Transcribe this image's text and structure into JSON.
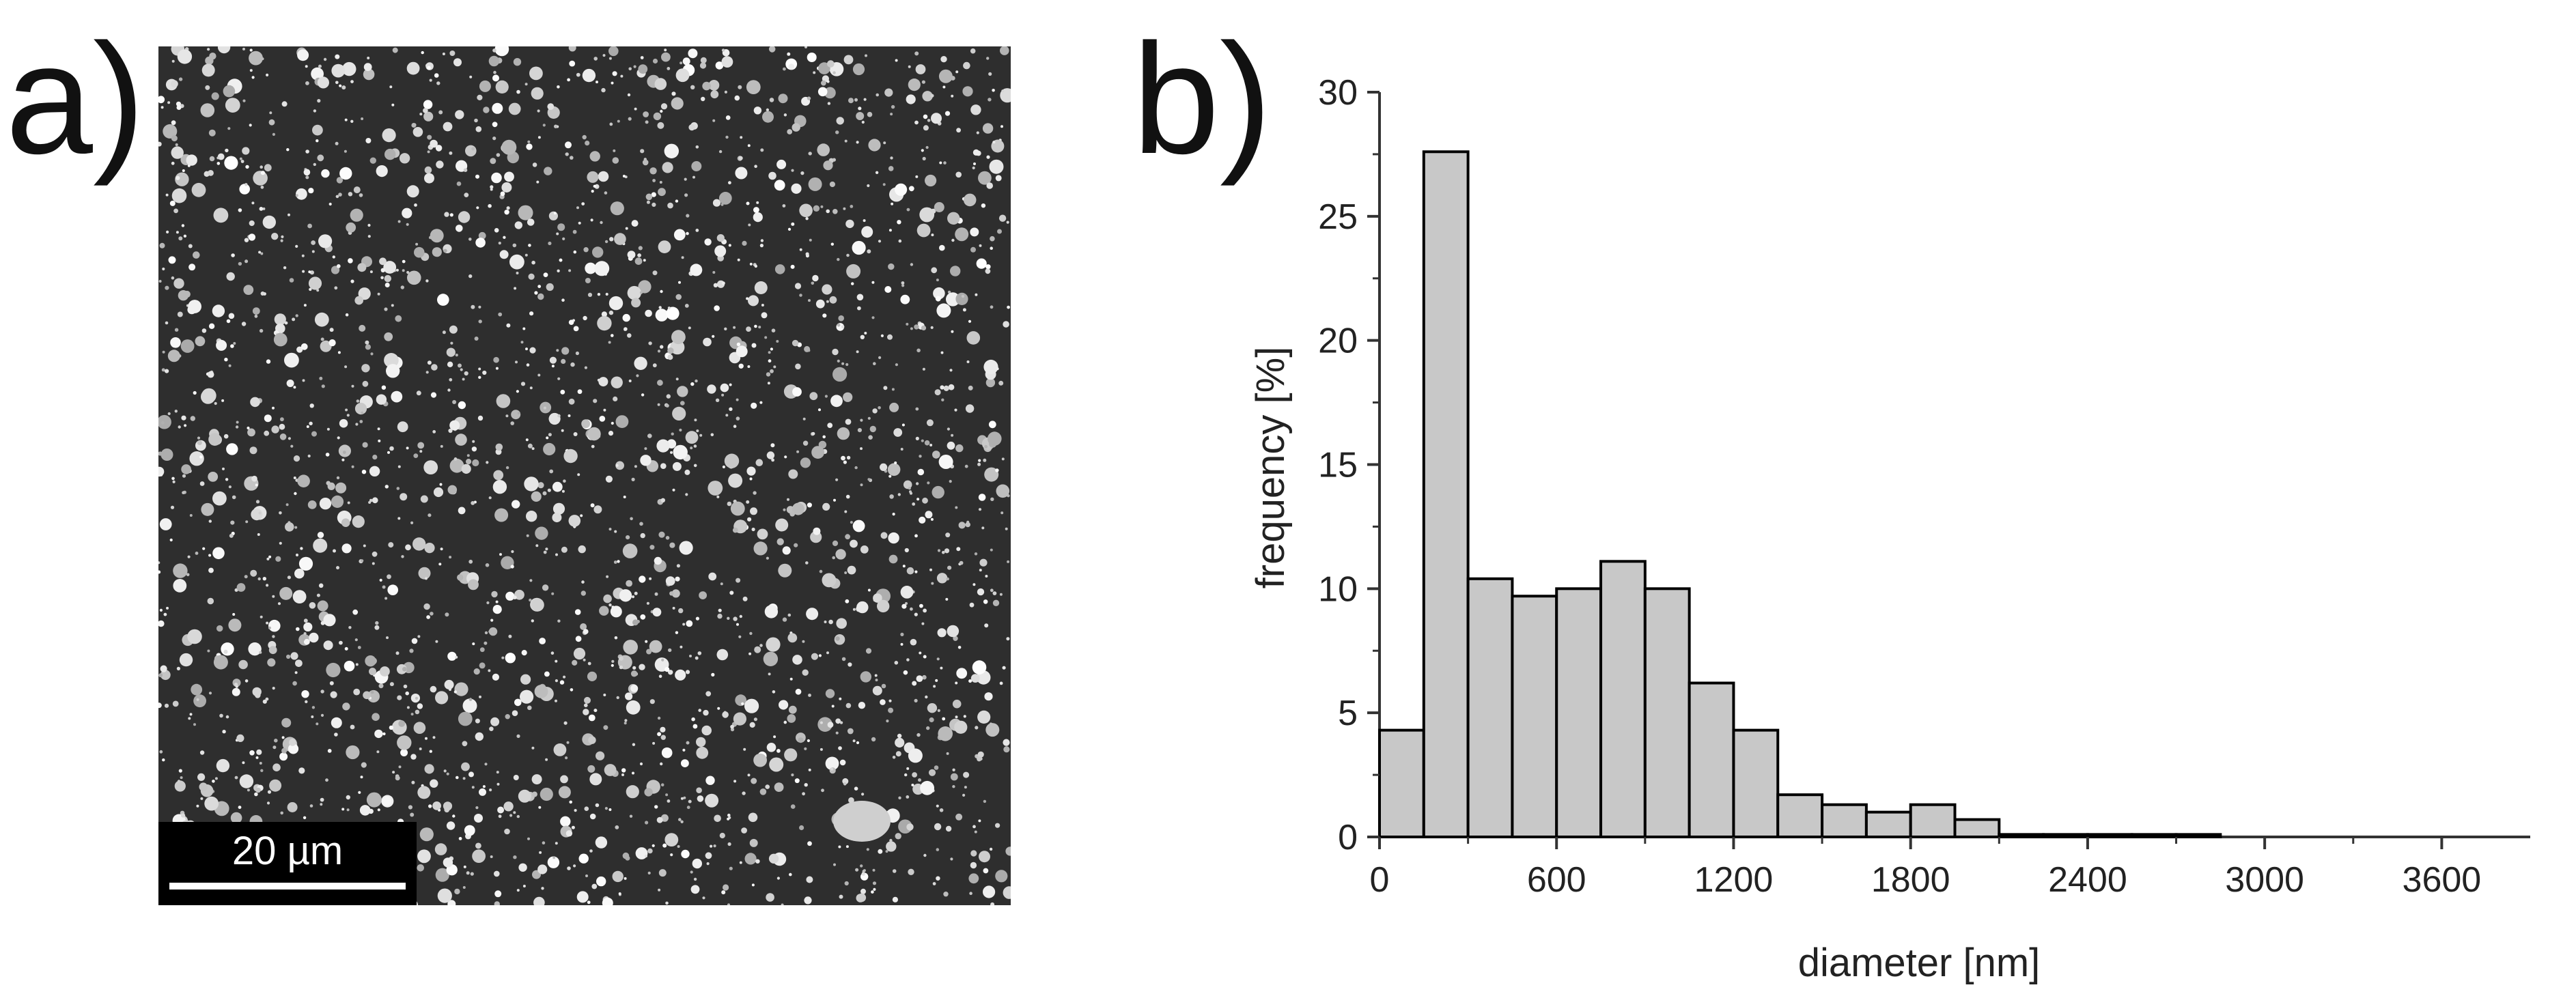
{
  "panels": {
    "a": "a)",
    "b": "b)"
  },
  "micrograph": {
    "scale_bar_label": "20 µm"
  },
  "chart_data": {
    "type": "bar",
    "xlabel": "diameter [nm]",
    "ylabel": "frequency [%]",
    "xlim": [
      0,
      3900
    ],
    "ylim": [
      0,
      30
    ],
    "xticks": [
      0,
      600,
      1200,
      1800,
      2400,
      3000,
      3600
    ],
    "yticks": [
      0,
      5,
      10,
      15,
      20,
      25,
      30
    ],
    "bin_width": 150,
    "bins": [
      {
        "x": 75,
        "value": 4.3
      },
      {
        "x": 225,
        "value": 27.6
      },
      {
        "x": 375,
        "value": 10.4
      },
      {
        "x": 525,
        "value": 9.7
      },
      {
        "x": 675,
        "value": 10.0
      },
      {
        "x": 825,
        "value": 11.1
      },
      {
        "x": 975,
        "value": 10.0
      },
      {
        "x": 1125,
        "value": 6.2
      },
      {
        "x": 1275,
        "value": 4.3
      },
      {
        "x": 1425,
        "value": 1.7
      },
      {
        "x": 1575,
        "value": 1.3
      },
      {
        "x": 1725,
        "value": 1.0
      },
      {
        "x": 1875,
        "value": 1.3
      },
      {
        "x": 2025,
        "value": 0.7
      },
      {
        "x": 2175,
        "value": 0.1
      },
      {
        "x": 2325,
        "value": 0.1
      },
      {
        "x": 2475,
        "value": 0.1
      },
      {
        "x": 2625,
        "value": 0.1
      },
      {
        "x": 2775,
        "value": 0.1
      }
    ],
    "bar_fill": "#c8c8c8",
    "bar_stroke": "#000000",
    "grid": false,
    "legend": "none"
  }
}
